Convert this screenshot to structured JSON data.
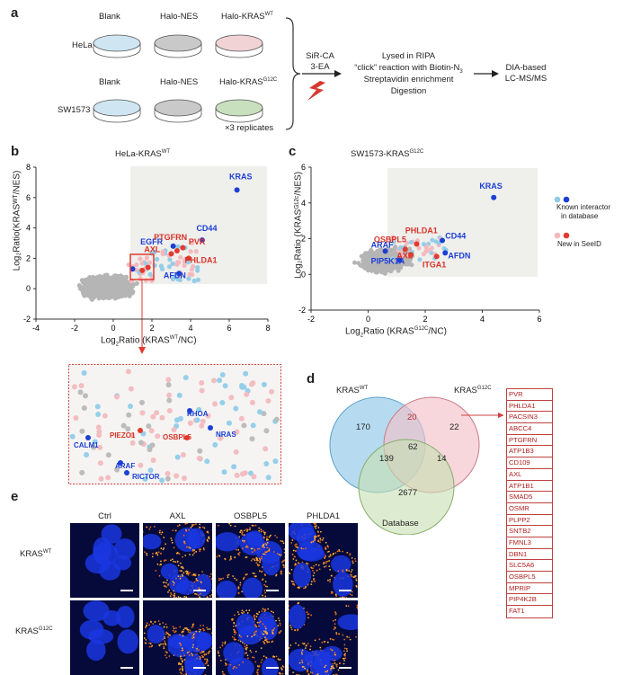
{
  "panel_a": {
    "label": "a",
    "cols": [
      "Blank",
      "Halo-NES",
      "Halo-KRAS",
      "Blank",
      "Halo-NES",
      "Halo-KRAS"
    ],
    "col3_sup": "WT",
    "col6_sup": "G12C",
    "row1": "HeLa",
    "row2": "SW1573",
    "replicates": "×3 replicates",
    "reagents": [
      "SiR-CA",
      "3-EA"
    ],
    "steps": [
      "Lysed in RIPA",
      "“click” reaction with Biotin-N",
      "Streptavidin enrichment",
      "Digestion"
    ],
    "step_sub": "3",
    "final": [
      "DIA-based",
      "LC-MS/MS"
    ],
    "dish_colors": [
      "#cfe6f2",
      "#c9c9c9",
      "#f1d3d6",
      "#cfe6f2",
      "#c9c9c9",
      "#c8e0bd"
    ]
  },
  "panel_b": {
    "label": "b",
    "title_pre": "HeLa-KRAS",
    "title_sup": "WT",
    "xlabel_pre": "Log",
    "xlabel_mid": "Ratio (KRAS",
    "xlabel_post": "/NC)",
    "ylabel": "Log₂Ratio(KRASᵂᵀ/NES)",
    "sub2": "2",
    "supWT": "WT",
    "xticks": [
      "-4",
      "-2",
      "0",
      "2",
      "4",
      "6",
      "8"
    ],
    "yticks": [
      "8",
      "6",
      "4",
      "2",
      "0",
      "-2"
    ],
    "labels_blue": [
      "KRAS",
      "CD44",
      "EGFR",
      "AFDN"
    ],
    "labels_red": [
      "PTGFRN",
      "AXL",
      "PVR",
      "PHLDA1"
    ]
  },
  "panel_c": {
    "label": "c",
    "title_pre": "SW1573-KRAS",
    "title_sup": "G12C",
    "xlabel_pre": "Log",
    "xlabel_mid": "Ratio (KRAS",
    "xlabel_post": "/NC)",
    "sub2": "2",
    "supG": "G12C",
    "ylabel": "Log₂Ratio (KRASᴳ¹²ᶜ/NES)",
    "xticks": [
      "-2",
      "0",
      "2",
      "4",
      "6"
    ],
    "yticks": [
      "6",
      "4",
      "2",
      "0",
      "-2"
    ],
    "labels_blue": [
      "KRAS",
      "CD44",
      "ARAF",
      "AFDN",
      "PIP5K1A"
    ],
    "labels_red": [
      "PHLDA1",
      "OSBPL5",
      "AXL",
      "ITGA1"
    ],
    "legend1": [
      "Known interactor",
      "in database"
    ],
    "legend2": "New in SeeID"
  },
  "zoom": {
    "labels_blue": [
      "RHOA",
      "CALM1",
      "NRAS",
      "ARAF",
      "RICTOR"
    ],
    "labels_red": [
      "PIEZO1",
      "OSBPL5"
    ]
  },
  "panel_d": {
    "label": "d",
    "set1_pre": "KRAS",
    "set1_sup": "WT",
    "set2_pre": "KRAS",
    "set2_sup": "G12C",
    "set3": "Database",
    "counts": {
      "only1": "170",
      "one_two": "20",
      "only2": "22",
      "center": "62",
      "one_db": "139",
      "two_db": "14",
      "only_db": "2677"
    },
    "genes": [
      "PVR",
      "PHLDA1",
      "PACSIN3",
      "ABCC4",
      "PTGFRN",
      "ATP1B3",
      "CD109",
      "AXL",
      "ATP1B1",
      "SMAD5",
      "OSMR",
      "PLPP2",
      "SNTB2",
      "FMNL3",
      "DBN1",
      "SLC5A6",
      "OSBPL5",
      "MPRIP",
      "PIP4K2B",
      "FAT1"
    ],
    "colors": {
      "set1": "#8fc7e8",
      "set2": "#f2c2ca",
      "set3": "#c7e0b0"
    }
  },
  "panel_e": {
    "label": "e",
    "cols": [
      "Ctrl",
      "AXL",
      "OSBPL5",
      "PHLDA1"
    ],
    "row1_pre": "KRAS",
    "row1_sup": "WT",
    "row2_pre": "KRAS",
    "row2_sup": "G12C"
  }
}
